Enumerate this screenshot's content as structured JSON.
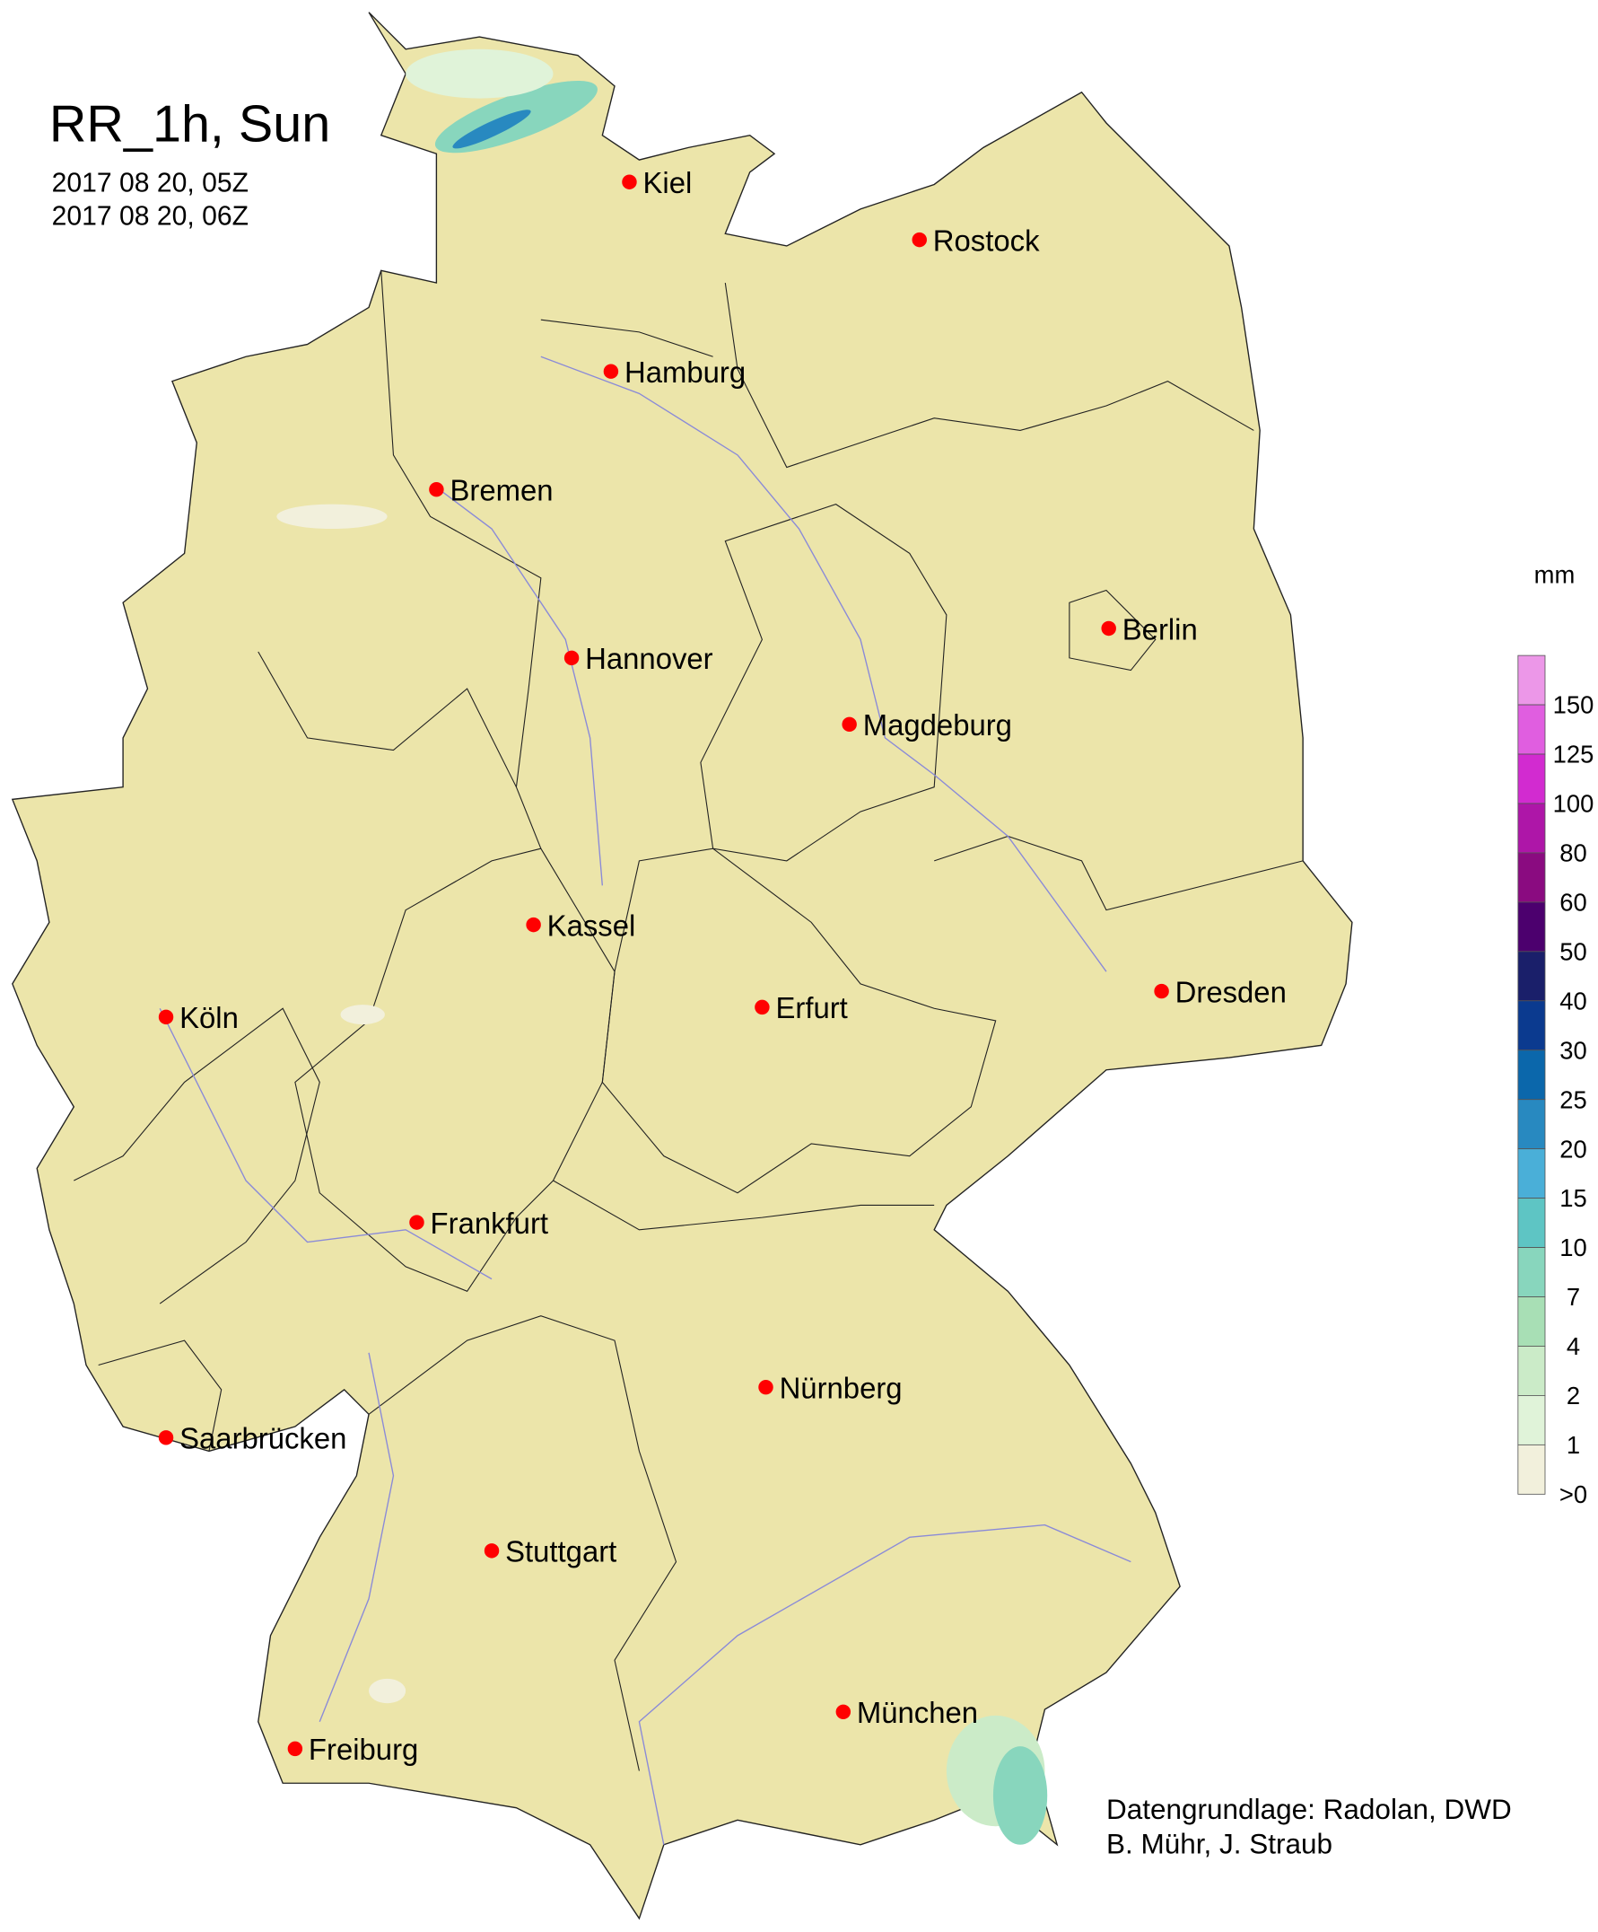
{
  "header": {
    "title": "RR_1h, Sun",
    "start_time": "2017 08 20, 05Z",
    "end_time": "2017 08 20, 06Z"
  },
  "map": {
    "land_color": "#ece5aa",
    "border_color": "#222222",
    "river_color": "#8a8ad8",
    "city_marker_color": "#ff0000",
    "cities": [
      {
        "name": "Kiel"
      },
      {
        "name": "Rostock"
      },
      {
        "name": "Hamburg"
      },
      {
        "name": "Bremen"
      },
      {
        "name": "Berlin"
      },
      {
        "name": "Hannover"
      },
      {
        "name": "Magdeburg"
      },
      {
        "name": "Kassel"
      },
      {
        "name": "Köln"
      },
      {
        "name": "Erfurt"
      },
      {
        "name": "Dresden"
      },
      {
        "name": "Frankfurt"
      },
      {
        "name": "Nürnberg"
      },
      {
        "name": "Saarbrücken"
      },
      {
        "name": "Stuttgart"
      },
      {
        "name": "München"
      },
      {
        "name": "Freiburg"
      }
    ]
  },
  "legend": {
    "unit": "mm",
    "colors": [
      "#ec97e8",
      "#e05ee0",
      "#d22bd0",
      "#ae16a8",
      "#8a0b80",
      "#4c006e",
      "#1a1f6a",
      "#0b3a8f",
      "#0b67ab",
      "#2889c0",
      "#4aafd8",
      "#5ec5c4",
      "#88d6bd",
      "#a8dfb5",
      "#cbebc8",
      "#e0f3d9",
      "#f2f0dc"
    ],
    "labels": [
      "150",
      "125",
      "100",
      "80",
      "60",
      "50",
      "40",
      "30",
      "25",
      "20",
      "15",
      "10",
      "7",
      "4",
      "2",
      "1",
      ">0"
    ]
  },
  "footer": {
    "source": "Datengrundlage: Radolan, DWD",
    "authors": "B. Mühr, J. Straub"
  }
}
